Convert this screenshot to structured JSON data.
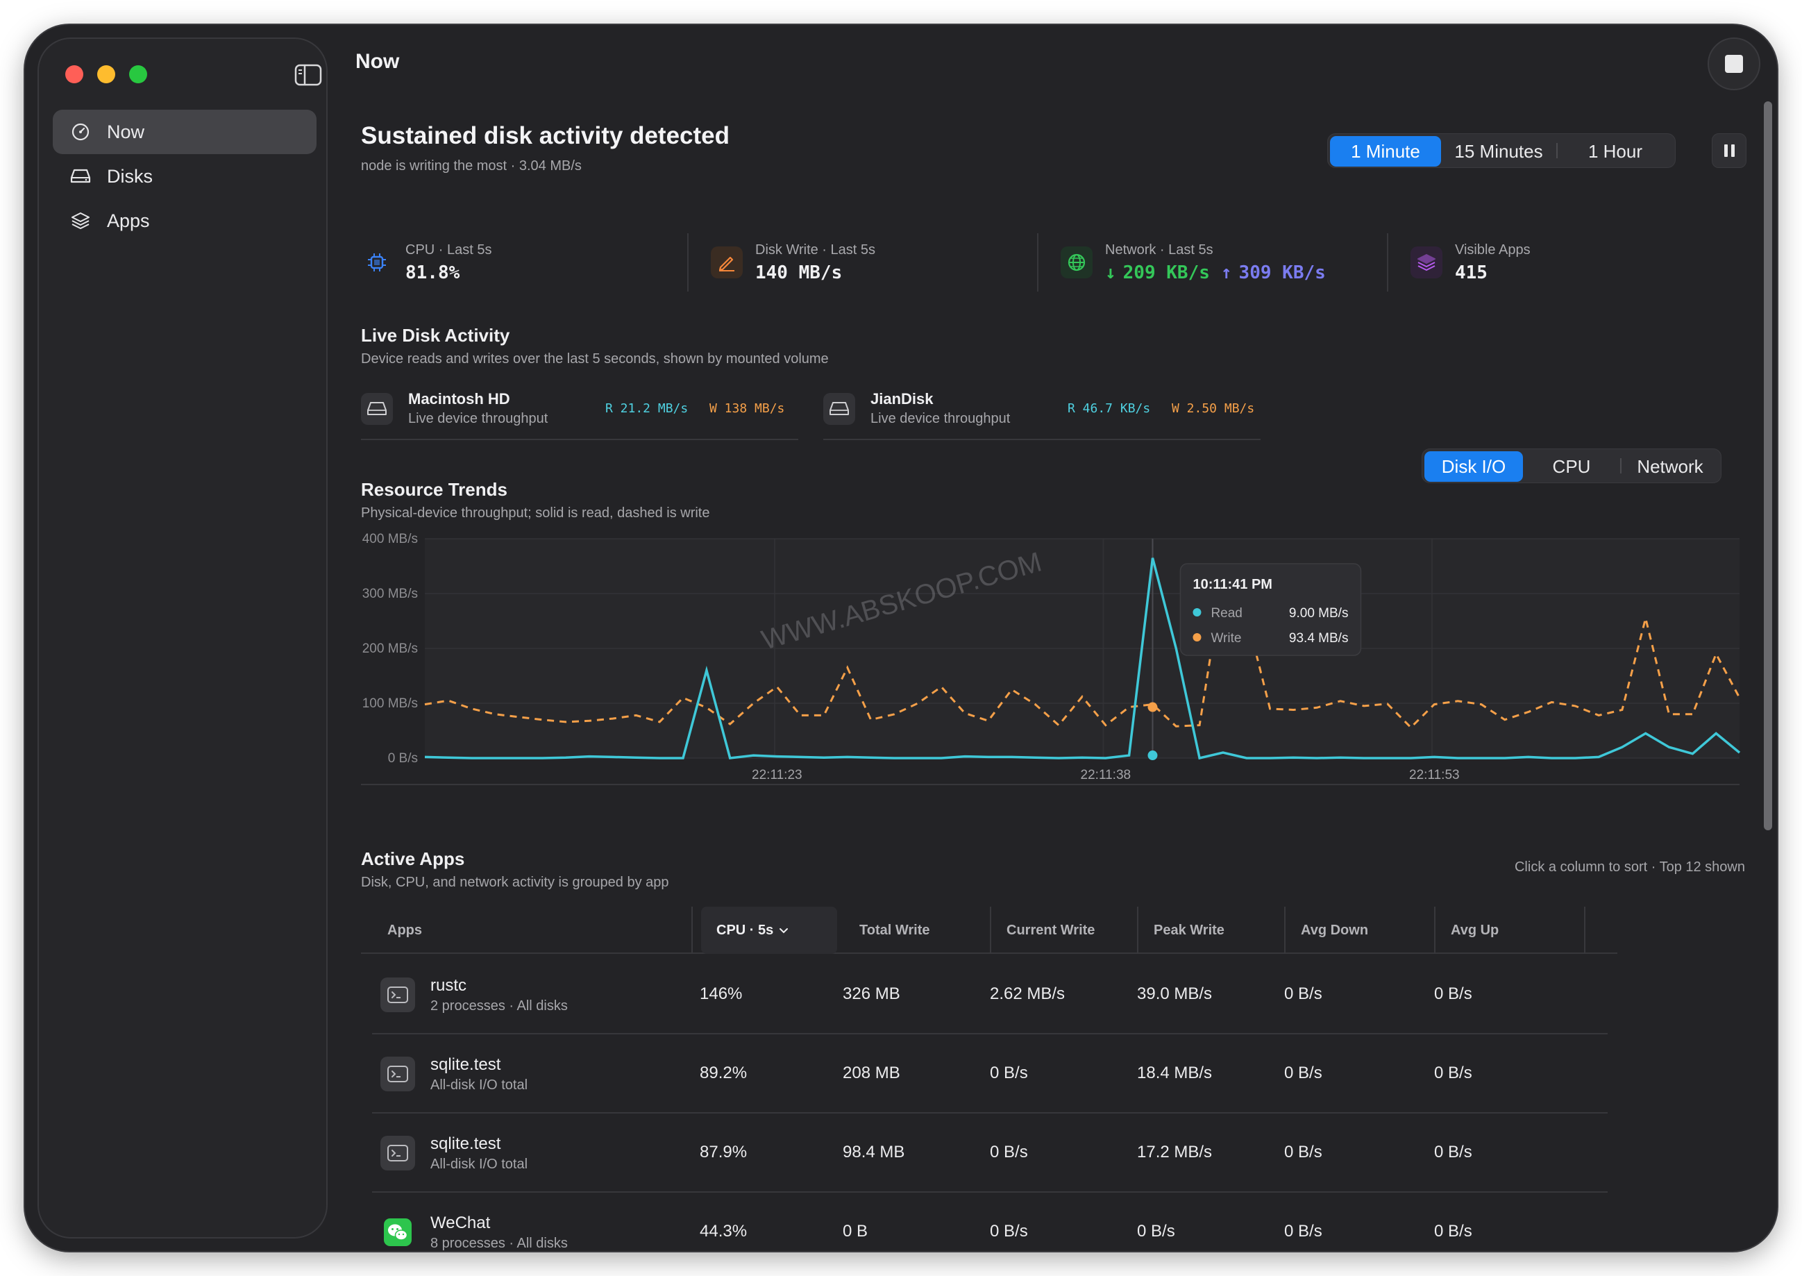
{
  "window": {
    "page_title": "Now"
  },
  "sidebar": {
    "items": [
      {
        "label": "Now",
        "icon": "gauge-icon",
        "active": true
      },
      {
        "label": "Disks",
        "icon": "disk-icon",
        "active": false
      },
      {
        "label": "Apps",
        "icon": "layers-icon",
        "active": false
      }
    ]
  },
  "header": {
    "headline": "Sustained disk activity detected",
    "subline": "node is writing the most · 3.04 MB/s",
    "time_ranges": [
      "1 Minute",
      "15 Minutes",
      "1 Hour"
    ],
    "time_range_selected": "1 Minute"
  },
  "metrics": {
    "cpu": {
      "label": "CPU · Last 5s",
      "value": "81.8%",
      "icon": "cpu-icon",
      "color": "#3b82f6"
    },
    "disk_write": {
      "label": "Disk Write · Last 5s",
      "value": "140 MB/s",
      "icon": "pencil-icon",
      "color": "#f5873a"
    },
    "network": {
      "label": "Network · Last 5s",
      "down": "209 KB/s",
      "up": "309 KB/s",
      "icon": "globe-icon",
      "color": "#34c759",
      "up_color": "#7b7cf0"
    },
    "apps": {
      "label": "Visible Apps",
      "value": "415",
      "icon": "stack-icon",
      "color": "#b75cf0"
    }
  },
  "live_disk": {
    "title": "Live Disk Activity",
    "subtitle": "Device reads and writes over the last 5 seconds, shown by mounted volume",
    "disks": [
      {
        "name": "Macintosh HD",
        "sub": "Live device throughput",
        "read": "R 21.2 MB/s",
        "write": "W 138 MB/s"
      },
      {
        "name": "JianDisk",
        "sub": "Live device throughput",
        "read": "R 46.7 KB/s",
        "write": "W 2.50 MB/s"
      }
    ]
  },
  "trends": {
    "title": "Resource Trends",
    "subtitle": "Physical-device throughput; solid is read, dashed is write",
    "tabs": [
      "Disk I/O",
      "CPU",
      "Network"
    ],
    "tab_selected": "Disk I/O",
    "tooltip": {
      "time": "10:11:41 PM",
      "read_label": "Read",
      "read_value": "9.00 MB/s",
      "write_label": "Write",
      "write_value": "93.4 MB/s"
    }
  },
  "chart_data": {
    "type": "line",
    "ylim": [
      0,
      400
    ],
    "y_ticks": [
      "0 B/s",
      "100 MB/s",
      "200 MB/s",
      "300 MB/s",
      "400 MB/s"
    ],
    "x_ticks": [
      {
        "label": "22:11:23",
        "index": 15
      },
      {
        "label": "22:11:38",
        "index": 29
      },
      {
        "label": "22:11:53",
        "index": 43
      }
    ],
    "x_count": 57,
    "series": [
      {
        "name": "Read",
        "style": "solid",
        "color": "#3fc8d8",
        "values": [
          2,
          1,
          0,
          0,
          0,
          0,
          1,
          3,
          2,
          1,
          0,
          0,
          0,
          2,
          5,
          3,
          2,
          1,
          2,
          1,
          0,
          0,
          0,
          3,
          2,
          2,
          1,
          0,
          1,
          0,
          5,
          0,
          0,
          0,
          2,
          0,
          0,
          1,
          0,
          1,
          0,
          0,
          0,
          2,
          0,
          0,
          0,
          2,
          0,
          0,
          2,
          20,
          12,
          5,
          8,
          18,
          10
        ]
      },
      {
        "name": "Write",
        "style": "dashed",
        "color": "#f5a049",
        "values": [
          98,
          105,
          90,
          80,
          75,
          70,
          66,
          68,
          72,
          78,
          66,
          110,
          92,
          62,
          100,
          130,
          78,
          78,
          165,
          70,
          80,
          100,
          130,
          82,
          68,
          125,
          98,
          60,
          112,
          60,
          58,
          98,
          58,
          60,
          130,
          84,
          90,
          88,
          92,
          104,
          95,
          99,
          56,
          98,
          104,
          98,
          70,
          84,
          102,
          95,
          78,
          88,
          100,
          70,
          80,
          124,
          110
        ]
      }
    ],
    "read_overrides": [
      {
        "index": 12,
        "value": 160
      },
      {
        "index": 13,
        "value": 0
      },
      {
        "index": 31,
        "value": 365
      },
      {
        "index": 32,
        "value": 200
      },
      {
        "index": 34,
        "value": 10
      },
      {
        "index": 52,
        "value": 45
      },
      {
        "index": 53,
        "value": 20
      },
      {
        "index": 55,
        "value": 45
      },
      {
        "index": 56,
        "value": 10
      }
    ],
    "write_overrides": [
      {
        "index": 30,
        "value": 93
      },
      {
        "index": 34,
        "value": 330
      },
      {
        "index": 35,
        "value": 260
      },
      {
        "index": 52,
        "value": 255
      },
      {
        "index": 53,
        "value": 80
      },
      {
        "index": 55,
        "value": 190
      },
      {
        "index": 56,
        "value": 110
      }
    ],
    "highlight_index": 31
  },
  "active_apps": {
    "title": "Active Apps",
    "subtitle": "Disk, CPU, and network activity is grouped by app",
    "hint": "Click a column to sort · Top 12 shown",
    "columns": [
      "Apps",
      "CPU · 5s",
      "Total Write",
      "Current Write",
      "Peak Write",
      "Avg Down",
      "Avg Up"
    ],
    "sorted_column": "CPU · 5s",
    "rows": [
      {
        "name": "rustc",
        "sub": "2 processes · All disks",
        "icon": "terminal-icon",
        "cpu": "146%",
        "total_write": "326 MB",
        "current_write": "2.62 MB/s",
        "peak_write": "39.0 MB/s",
        "avg_down": "0 B/s",
        "avg_up": "0 B/s"
      },
      {
        "name": "sqlite.test",
        "sub": "All-disk I/O total",
        "icon": "terminal-icon",
        "cpu": "89.2%",
        "total_write": "208 MB",
        "current_write": "0 B/s",
        "peak_write": "18.4 MB/s",
        "avg_down": "0 B/s",
        "avg_up": "0 B/s"
      },
      {
        "name": "sqlite.test",
        "sub": "All-disk I/O total",
        "icon": "terminal-icon",
        "cpu": "87.9%",
        "total_write": "98.4 MB",
        "current_write": "0 B/s",
        "peak_write": "17.2 MB/s",
        "avg_down": "0 B/s",
        "avg_up": "0 B/s"
      },
      {
        "name": "WeChat",
        "sub": "8 processes · All disks",
        "icon": "wechat-icon",
        "cpu": "44.3%",
        "total_write": "0 B",
        "current_write": "0 B/s",
        "peak_write": "0 B/s",
        "avg_down": "0 B/s",
        "avg_up": "0 B/s"
      }
    ]
  },
  "watermark": "WWW.ABSKOOP.COM"
}
